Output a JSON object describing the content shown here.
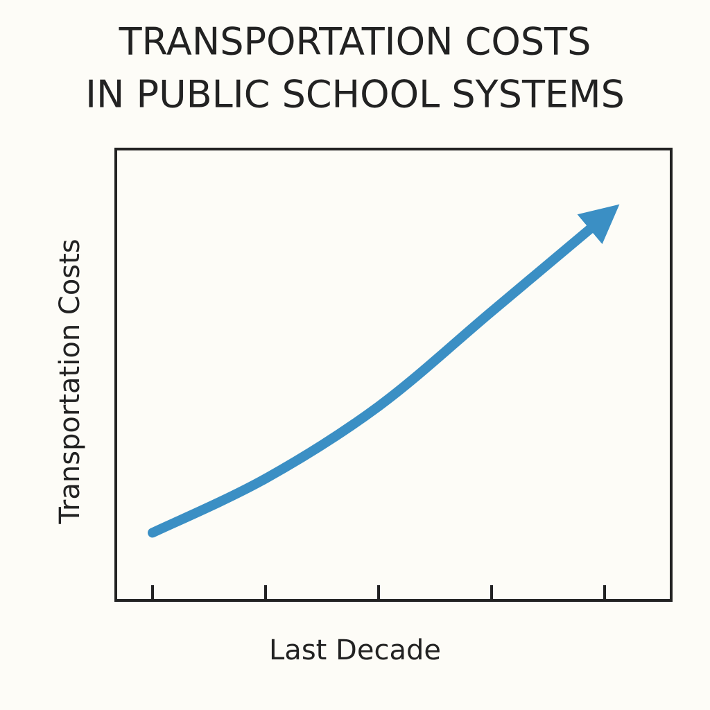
{
  "chart_data": {
    "type": "line",
    "title": [
      "TRANSPORTATION COSTS",
      "IN PUBLIC SCHOOL SYSTEMS"
    ],
    "x_label": "Last Decade",
    "y_label": "Transportation Costs",
    "categories": [
      null,
      null,
      null,
      null,
      null
    ],
    "series": [
      {
        "color": "#3b8fc4",
        "values": [
          15,
          27,
          43,
          64,
          85
        ]
      }
    ],
    "ylim": [
      0,
      100
    ],
    "arrow": true
  }
}
